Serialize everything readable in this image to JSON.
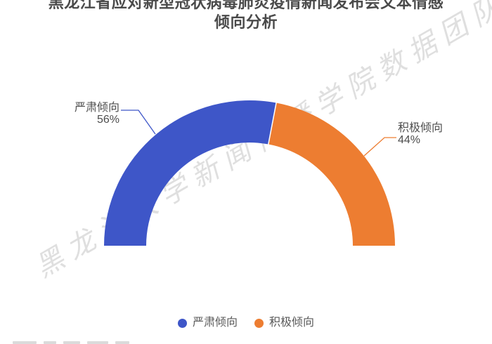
{
  "title": {
    "text": "黑龙江省应对新型冠状病毒肺炎疫情新闻发布会文本情感倾向分析",
    "line1": "黑龙江省应对新型冠状病毒肺炎疫情新闻发布会文本情感",
    "line2": "倾向分析"
  },
  "watermark": {
    "text": "黑龙江大学新闻传播学院数据团队"
  },
  "labels": {
    "serious": {
      "name": "严肃倾向",
      "value": "56%"
    },
    "positive": {
      "name": "积极倾向",
      "value": "44%"
    }
  },
  "legend": {
    "items": [
      {
        "label": "严肃倾向",
        "color": "#3E56C8"
      },
      {
        "label": "积极倾向",
        "color": "#ED7D31"
      }
    ]
  },
  "chart_data": {
    "type": "pie",
    "subtype": "half-donut",
    "title": "黑龙江省应对新型冠状病毒肺炎疫情新闻发布会文本情感倾向分析",
    "categories": [
      "严肃倾向",
      "积极倾向"
    ],
    "values": [
      56,
      44
    ],
    "unit": "%",
    "colors": [
      "#3E56C8",
      "#ED7D31"
    ],
    "start_angle_deg": 180,
    "end_angle_deg": 0,
    "outer_radius_px": 207,
    "inner_radius_ratio": 0.71,
    "legend_position": "bottom",
    "label_format": "category name + percent, outside with leader lines"
  }
}
